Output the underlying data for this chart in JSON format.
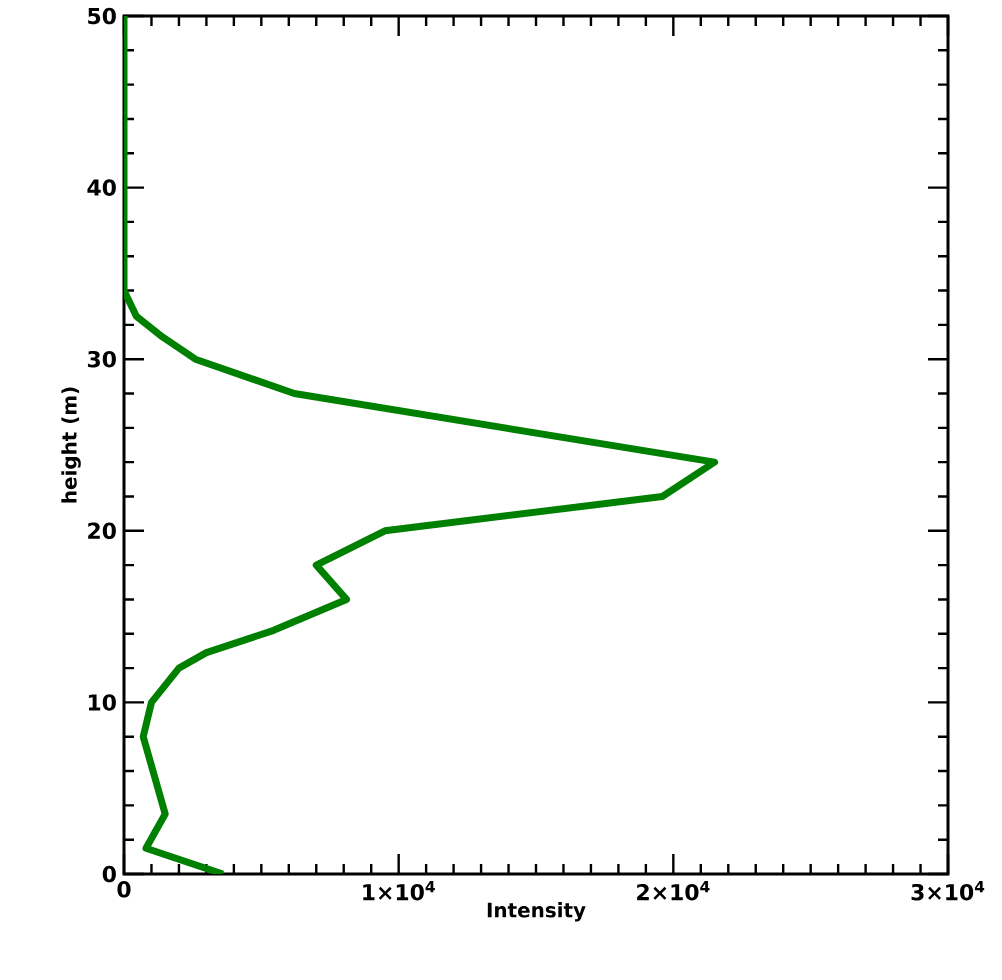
{
  "chart_data": {
    "type": "line",
    "xlabel": "Intensity",
    "ylabel": "height (m)",
    "series": [
      {
        "color": "#008000",
        "x": [
          3600,
          800,
          1500,
          700,
          1000,
          2000,
          3000,
          5450,
          8100,
          7000,
          9500,
          19600,
          21500,
          6200,
          2600,
          1400,
          450,
          0,
          0
        ],
        "values": [
          0,
          1.5,
          3.5,
          8,
          10,
          12,
          12.9,
          14.2,
          16,
          18,
          20,
          22,
          24,
          28,
          30,
          31.3,
          32.5,
          34,
          50
        ]
      }
    ],
    "xlim": [
      0,
      30000
    ],
    "ylim": [
      0,
      50
    ],
    "xticks": [
      0,
      {
        "value": 10000,
        "label": "1×10$^{4}$"
      },
      {
        "value": 20000,
        "label": "2×10$^{4}$"
      },
      {
        "value": 30000,
        "label": "3×10$^{4}$"
      }
    ],
    "yticks": [
      0,
      10,
      20,
      30,
      40,
      50
    ],
    "marker": "none",
    "line_style": "solid"
  }
}
